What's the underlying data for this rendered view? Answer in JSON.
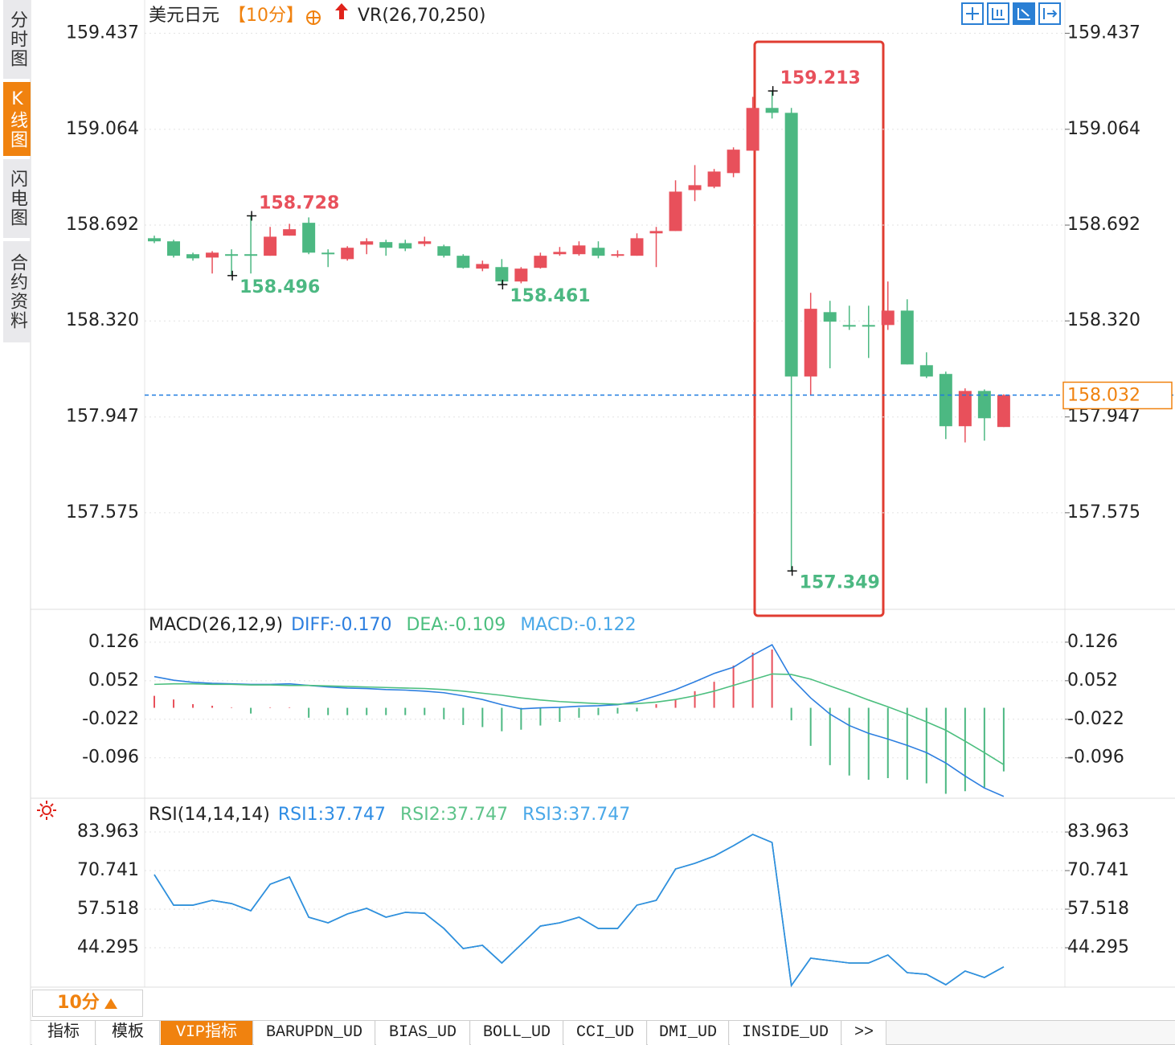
{
  "chart_data": [
    {
      "type": "candlestick",
      "title": "美元日元",
      "period": "【10分】",
      "indicator": "VR(26,70,250)",
      "up_color": "#e8505b",
      "down_color": "#4cb882",
      "grid": true,
      "ylim": [
        157.2,
        159.46
      ],
      "yticks": [
        159.437,
        159.064,
        158.692,
        {
          "value": 158.32,
          "label": "158.320"
        },
        157.947,
        157.575
      ],
      "categories": [
        null,
        null,
        null,
        null,
        null,
        null,
        null,
        null,
        null,
        null,
        null,
        null,
        null,
        null,
        null,
        null,
        null,
        null,
        null,
        null,
        null,
        null,
        null,
        null,
        null,
        null,
        null,
        null,
        null,
        null,
        null,
        null,
        null,
        null,
        null,
        null,
        null,
        null,
        null,
        null,
        null,
        null,
        null,
        null,
        null
      ],
      "open": [
        158.641,
        158.629,
        158.579,
        158.566,
        158.579,
        158.579,
        158.573,
        158.651,
        158.701,
        158.585,
        158.56,
        158.616,
        158.626,
        158.622,
        158.619,
        158.61,
        158.573,
        158.523,
        158.529,
        158.473,
        158.526,
        158.579,
        158.579,
        158.604,
        158.573,
        158.573,
        158.66,
        158.669,
        158.828,
        158.841,
        158.894,
        158.981,
        159.147,
        159.128,
        158.104,
        158.354,
        158.304,
        158.304,
        158.304,
        158.36,
        158.148,
        158.114,
        157.911,
        158.048,
        157.908
      ],
      "high": [
        158.651,
        158.635,
        158.585,
        158.591,
        158.598,
        158.728,
        158.685,
        158.697,
        158.722,
        158.598,
        158.61,
        158.641,
        158.635,
        158.635,
        158.647,
        158.616,
        158.579,
        158.554,
        158.56,
        158.529,
        158.585,
        158.607,
        158.629,
        158.629,
        158.594,
        158.66,
        158.685,
        158.866,
        158.925,
        158.91,
        158.994,
        159.19,
        159.213,
        159.147,
        158.429,
        158.398,
        158.379,
        158.379,
        158.473,
        158.404,
        158.198,
        158.123,
        158.058,
        158.054,
        158.035
      ],
      "low": [
        158.622,
        158.566,
        158.554,
        158.504,
        158.496,
        158.504,
        158.573,
        158.651,
        158.579,
        158.529,
        158.554,
        158.579,
        158.573,
        158.591,
        158.61,
        158.566,
        158.523,
        158.513,
        158.461,
        158.466,
        158.523,
        158.573,
        158.573,
        158.563,
        158.566,
        158.573,
        158.529,
        158.669,
        158.785,
        158.835,
        158.878,
        158.981,
        159.106,
        157.349,
        158.03,
        158.136,
        158.285,
        158.176,
        158.285,
        158.151,
        158.098,
        157.861,
        157.848,
        157.855,
        157.908
      ],
      "close": [
        158.629,
        158.573,
        158.563,
        158.585,
        158.576,
        158.576,
        158.647,
        158.676,
        158.585,
        158.579,
        158.604,
        158.629,
        158.604,
        158.601,
        158.629,
        158.573,
        158.526,
        158.541,
        158.473,
        158.523,
        158.573,
        158.588,
        158.613,
        158.573,
        158.579,
        158.641,
        158.669,
        158.822,
        158.847,
        158.9,
        158.985,
        159.147,
        159.128,
        158.104,
        158.367,
        158.317,
        158.298,
        158.301,
        158.36,
        158.151,
        158.104,
        157.911,
        158.048,
        157.942,
        158.032
      ]
    },
    {
      "type": "macd",
      "title": "MACD(26,12,9)",
      "grid": true,
      "ylim": [
        -0.172,
        0.186
      ],
      "yticks": [
        0.126,
        0.052,
        -0.022,
        -0.096
      ],
      "series": [
        {
          "name": "DIFF:-0.170",
          "color": "#2d7fe0",
          "style": "line",
          "values": [
            0.06,
            0.053,
            0.049,
            0.047,
            0.046,
            0.045,
            0.045,
            0.046,
            0.043,
            0.04,
            0.038,
            0.037,
            0.035,
            0.034,
            0.032,
            0.029,
            0.023,
            0.016,
            0.006,
            -0.002,
            0.0,
            0.001,
            0.003,
            0.004,
            0.006,
            0.012,
            0.023,
            0.035,
            0.05,
            0.066,
            0.078,
            0.101,
            0.121,
            0.057,
            0.019,
            -0.012,
            -0.034,
            -0.049,
            -0.06,
            -0.072,
            -0.086,
            -0.106,
            -0.131,
            -0.154,
            -0.17
          ]
        },
        {
          "name": "DEA:-0.109",
          "color": "#4cbf7f",
          "style": "line",
          "values": [
            0.045,
            0.046,
            0.046,
            0.045,
            0.045,
            0.044,
            0.044,
            0.043,
            0.043,
            0.042,
            0.041,
            0.04,
            0.039,
            0.038,
            0.037,
            0.035,
            0.032,
            0.028,
            0.024,
            0.019,
            0.015,
            0.012,
            0.01,
            0.008,
            0.007,
            0.008,
            0.011,
            0.016,
            0.023,
            0.032,
            0.043,
            0.054,
            0.065,
            0.064,
            0.055,
            0.042,
            0.029,
            0.015,
            0.002,
            -0.012,
            -0.027,
            -0.043,
            -0.064,
            -0.086,
            -0.109
          ]
        },
        {
          "name": "MACD:-0.122",
          "color": "#4aa8e8",
          "style": "bar",
          "up_color": "#e8505b",
          "down_color": "#4cb882",
          "values": [
            0.023,
            0.016,
            0.007,
            0.004,
            0.001,
            -0.011,
            0.001,
            0.001,
            -0.019,
            -0.014,
            -0.014,
            -0.014,
            -0.014,
            -0.014,
            -0.014,
            -0.022,
            -0.033,
            -0.037,
            -0.045,
            -0.042,
            -0.034,
            -0.027,
            -0.019,
            -0.014,
            -0.011,
            -0.007,
            0.007,
            0.016,
            0.032,
            0.05,
            0.081,
            0.106,
            0.112,
            -0.024,
            -0.073,
            -0.11,
            -0.13,
            -0.138,
            -0.135,
            -0.138,
            -0.145,
            -0.165,
            -0.16,
            -0.153,
            -0.122
          ]
        }
      ]
    },
    {
      "type": "rsi",
      "title": "RSI(14,14,14)",
      "grid": true,
      "ylim": [
        30.8,
        95.0
      ],
      "yticks": [
        83.963,
        70.741,
        57.518,
        44.295
      ],
      "series": [
        {
          "name": "RSI1:37.747",
          "color": "#2f8de4",
          "style": "line",
          "values": [
            69.363,
            58.897,
            58.897,
            60.549,
            59.447,
            56.968,
            66.058,
            68.537,
            54.765,
            52.836,
            55.866,
            57.794,
            54.765,
            56.417,
            56.141,
            50.908,
            44.021,
            45.123,
            39.063,
            45.398,
            51.734,
            52.836,
            54.765,
            50.908,
            50.908,
            58.897,
            60.549,
            71.292,
            73.22,
            75.699,
            79.28,
            83.137,
            80.382,
            31.351,
            40.715,
            39.889,
            39.063,
            39.063,
            41.818,
            35.758,
            35.203,
            31.626,
            36.308,
            34.104,
            37.747
          ]
        },
        {
          "name": "RSI2:37.747",
          "color": "#5ec38a",
          "style": "line",
          "values": [
            69.363,
            58.897,
            58.897,
            60.549,
            59.447,
            56.968,
            66.058,
            68.537,
            54.765,
            52.836,
            55.866,
            57.794,
            54.765,
            56.417,
            56.141,
            50.908,
            44.021,
            45.123,
            39.063,
            45.398,
            51.734,
            52.836,
            54.765,
            50.908,
            50.908,
            58.897,
            60.549,
            71.292,
            73.22,
            75.699,
            79.28,
            83.137,
            80.382,
            31.351,
            40.715,
            39.889,
            39.063,
            39.063,
            41.818,
            35.758,
            35.203,
            31.626,
            36.308,
            34.104,
            37.747
          ]
        },
        {
          "name": "RSI3:37.747",
          "color": "#4aa8e8",
          "style": "line",
          "values": [
            69.363,
            58.897,
            58.897,
            60.549,
            59.447,
            56.968,
            66.058,
            68.537,
            54.765,
            52.836,
            55.866,
            57.794,
            54.765,
            56.417,
            56.141,
            50.908,
            44.021,
            45.123,
            39.063,
            45.398,
            51.734,
            52.836,
            54.765,
            50.908,
            50.908,
            58.897,
            60.549,
            71.292,
            73.22,
            75.699,
            79.28,
            83.137,
            80.382,
            31.351,
            40.715,
            39.889,
            39.063,
            39.063,
            41.818,
            35.758,
            35.203,
            31.626,
            36.308,
            34.104,
            37.747
          ]
        }
      ]
    }
  ],
  "ui": {
    "sidebar": [
      "分时图",
      "K线图",
      "闪电图",
      "合约资料"
    ],
    "period_button": "10分",
    "tabs": [
      "指标",
      "模板",
      "VIP指标",
      "BARUPDN_UD",
      "BIAS_UD",
      "BOLL_UD",
      "CCI_UD",
      "DMI_UD",
      "INSIDE_UD",
      ">>"
    ]
  }
}
